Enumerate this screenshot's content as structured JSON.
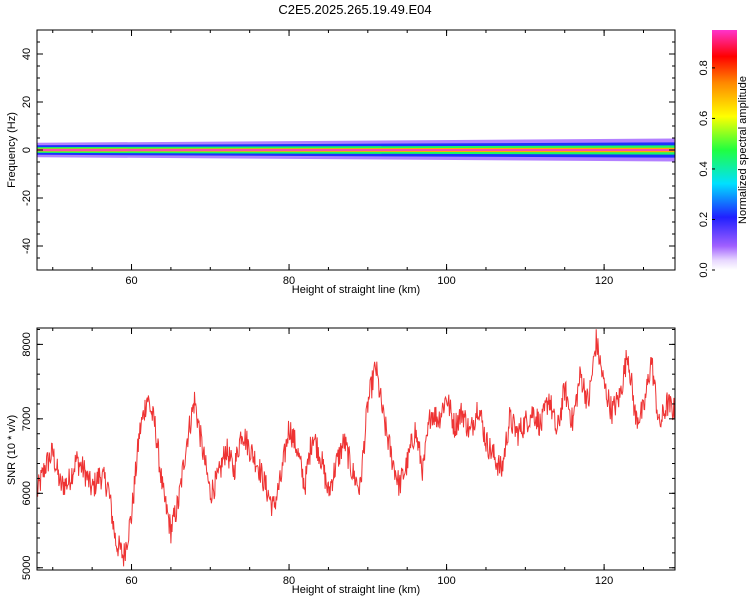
{
  "title": "C2E5.2025.265.19.49.E04",
  "chart_data": [
    {
      "type": "heatmap",
      "xlabel": "Height of straight line (km)",
      "ylabel": "Frequency (Hz)",
      "xlim": [
        48,
        129
      ],
      "ylim": [
        -50,
        50
      ],
      "xticks": [
        60,
        80,
        100,
        120
      ],
      "xtick_labels": [
        "60",
        "80",
        "100",
        "120"
      ],
      "yticks": [
        -40,
        -20,
        0,
        20,
        40
      ],
      "ytick_labels": [
        "-40",
        "-20",
        "0",
        "20",
        "40"
      ],
      "band": {
        "center_freq_hz": 0,
        "profile": [
          {
            "offset_hz": 0.0,
            "amplitude": 0.95
          },
          {
            "offset_hz": 0.6,
            "amplitude": 0.7
          },
          {
            "offset_hz": 1.2,
            "amplitude": 0.45
          },
          {
            "offset_hz": 2.0,
            "amplitude": 0.22
          },
          {
            "offset_hz": 3.0,
            "amplitude": 0.08
          }
        ],
        "note": "narrow band near 0 Hz; widens and weakens toward greater heights"
      },
      "colorbar": {
        "label": "Normalized spectral amplitude",
        "range": [
          0,
          0.95
        ],
        "ticks": [
          0.0,
          0.2,
          0.4,
          0.6,
          0.8
        ],
        "tick_labels": [
          "0.0",
          "0.2",
          "0.4",
          "0.6",
          "0.8"
        ]
      }
    },
    {
      "type": "line",
      "xlabel": "Height of straight line (km)",
      "ylabel": "SNR (10 * v/v)",
      "xlim": [
        48,
        129
      ],
      "ylim": [
        4970,
        8220
      ],
      "xticks": [
        60,
        80,
        100,
        120
      ],
      "xtick_labels": [
        "60",
        "80",
        "100",
        "120"
      ],
      "yticks": [
        5000,
        6000,
        7000,
        8000
      ],
      "ytick_labels": [
        "5000",
        "6000",
        "7000",
        "8000"
      ],
      "color": "#ee3333",
      "series": [
        {
          "name": "SNR",
          "points": [
            [
              48,
              6000
            ],
            [
              49,
              6350
            ],
            [
              50,
              6550
            ],
            [
              51,
              6100
            ],
            [
              52,
              6150
            ],
            [
              53,
              6450
            ],
            [
              54,
              6300
            ],
            [
              55,
              6050
            ],
            [
              56,
              6250
            ],
            [
              57,
              6100
            ],
            [
              58,
              5350
            ],
            [
              59,
              5150
            ],
            [
              60,
              5700
            ],
            [
              61,
              6800
            ],
            [
              62,
              7300
            ],
            [
              63,
              6900
            ],
            [
              64,
              6000
            ],
            [
              65,
              5500
            ],
            [
              66,
              5900
            ],
            [
              67,
              6700
            ],
            [
              68,
              7250
            ],
            [
              69,
              6600
            ],
            [
              70,
              6000
            ],
            [
              71,
              6200
            ],
            [
              72,
              6600
            ],
            [
              73,
              6300
            ],
            [
              74,
              6850
            ],
            [
              75,
              6600
            ],
            [
              76,
              6400
            ],
            [
              77,
              6100
            ],
            [
              78,
              5800
            ],
            [
              79,
              6200
            ],
            [
              80,
              6900
            ],
            [
              81,
              6600
            ],
            [
              82,
              6100
            ],
            [
              83,
              6800
            ],
            [
              84,
              6500
            ],
            [
              85,
              6000
            ],
            [
              86,
              6400
            ],
            [
              87,
              6700
            ],
            [
              88,
              6300
            ],
            [
              89,
              6050
            ],
            [
              90,
              7200
            ],
            [
              91,
              7700
            ],
            [
              92,
              7000
            ],
            [
              93,
              6500
            ],
            [
              94,
              6100
            ],
            [
              95,
              6400
            ],
            [
              96,
              6850
            ],
            [
              97,
              6300
            ],
            [
              98,
              7100
            ],
            [
              99,
              7000
            ],
            [
              100,
              7300
            ],
            [
              101,
              6900
            ],
            [
              102,
              7100
            ],
            [
              103,
              6800
            ],
            [
              104,
              7200
            ],
            [
              105,
              6700
            ],
            [
              106,
              6500
            ],
            [
              107,
              6300
            ],
            [
              108,
              7000
            ],
            [
              109,
              6800
            ],
            [
              110,
              6950
            ],
            [
              111,
              7100
            ],
            [
              112,
              6900
            ],
            [
              113,
              7300
            ],
            [
              114,
              6800
            ],
            [
              115,
              7400
            ],
            [
              116,
              6950
            ],
            [
              117,
              7600
            ],
            [
              118,
              7200
            ],
            [
              119,
              8050
            ],
            [
              120,
              7450
            ],
            [
              121,
              7100
            ],
            [
              122,
              7300
            ],
            [
              123,
              7900
            ],
            [
              124,
              7000
            ],
            [
              125,
              7100
            ],
            [
              126,
              7800
            ],
            [
              127,
              6900
            ],
            [
              128,
              7200
            ],
            [
              129,
              7100
            ]
          ]
        }
      ]
    }
  ]
}
